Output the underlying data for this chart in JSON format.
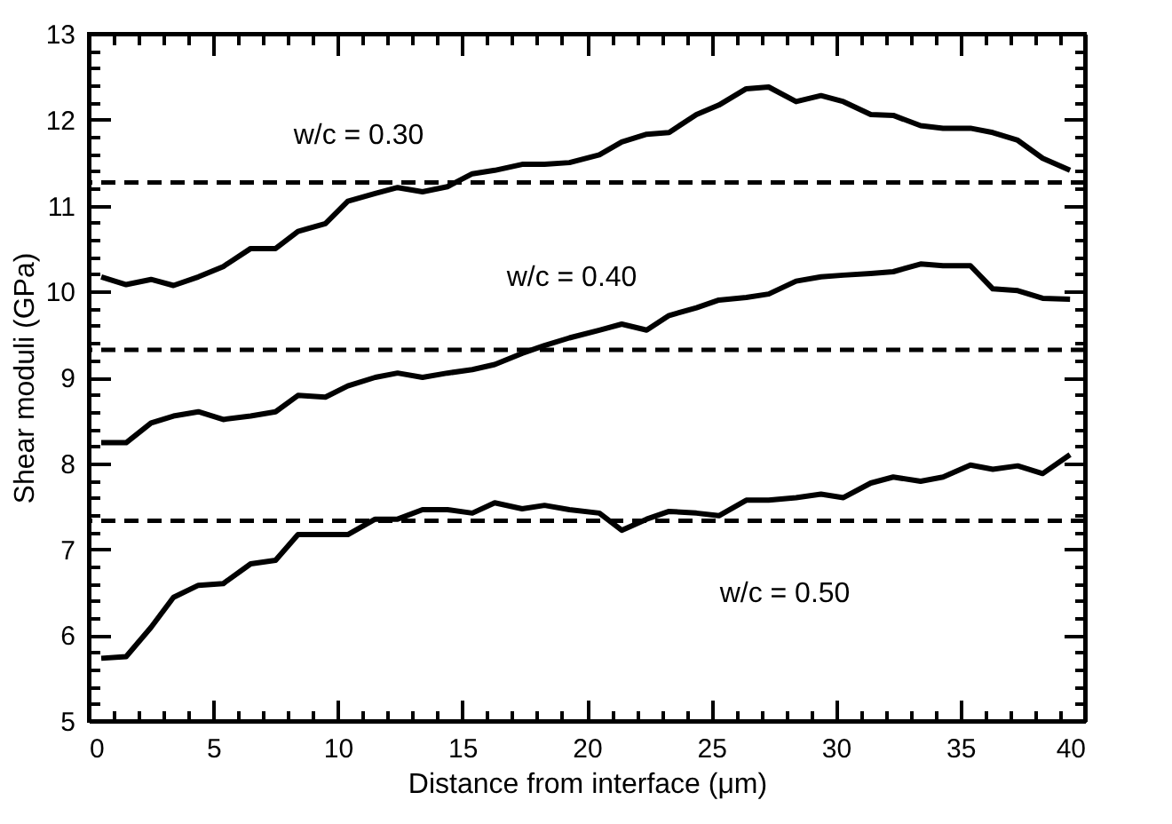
{
  "chart_data": {
    "type": "line",
    "xlabel": "Distance from interface (μm)",
    "ylabel": "Shear moduli (GPa)",
    "x": [
      0.5,
      1.5,
      2.5,
      3.4,
      4.4,
      5.4,
      6.5,
      7.5,
      8.4,
      9.5,
      10.4,
      11.5,
      12.4,
      13.4,
      14.4,
      15.4,
      16.3,
      17.4,
      18.3,
      19.3,
      20.5,
      21.4,
      22.4,
      23.3,
      24.4,
      25.3,
      26.4,
      27.3,
      28.4,
      29.4,
      30.3,
      31.4,
      32.3,
      33.4,
      34.3,
      35.4,
      36.3,
      37.3,
      38.3,
      39.4
    ],
    "series": [
      {
        "name": "w/c = 0.30",
        "color": "#000000",
        "values": [
          10.17,
          10.08,
          10.14,
          10.07,
          10.17,
          10.29,
          10.5,
          10.5,
          10.7,
          10.79,
          11.05,
          11.14,
          11.21,
          11.16,
          11.22,
          11.37,
          11.41,
          11.48,
          11.48,
          11.5,
          11.59,
          11.74,
          11.83,
          11.85,
          12.06,
          12.17,
          12.36,
          12.38,
          12.21,
          12.28,
          12.21,
          12.06,
          12.05,
          11.93,
          11.9,
          11.9,
          11.85,
          11.76,
          11.55,
          11.41
        ]
      },
      {
        "name": "w/c = 0.40",
        "color": "#000000",
        "values": [
          8.24,
          8.24,
          8.47,
          8.55,
          8.6,
          8.51,
          8.55,
          8.6,
          8.79,
          8.77,
          8.9,
          9.0,
          9.05,
          9.0,
          9.05,
          9.09,
          9.15,
          9.28,
          9.37,
          9.46,
          9.55,
          9.62,
          9.55,
          9.72,
          9.81,
          9.9,
          9.93,
          9.97,
          10.12,
          10.17,
          10.19,
          10.21,
          10.23,
          10.32,
          10.3,
          10.3,
          10.03,
          10.01,
          9.92,
          9.91
        ]
      },
      {
        "name": "w/c = 0.50",
        "color": "#000000",
        "values": [
          5.73,
          5.75,
          6.09,
          6.44,
          6.58,
          6.6,
          6.83,
          6.87,
          7.17,
          7.17,
          7.17,
          7.35,
          7.35,
          7.46,
          7.46,
          7.42,
          7.54,
          7.47,
          7.51,
          7.46,
          7.42,
          7.22,
          7.35,
          7.44,
          7.42,
          7.39,
          7.57,
          7.57,
          7.6,
          7.64,
          7.6,
          7.77,
          7.84,
          7.79,
          7.84,
          7.98,
          7.93,
          7.97,
          7.88,
          8.1
        ]
      }
    ],
    "ref_lines": [
      {
        "axis": "y",
        "value": 11.27,
        "color": "#000000",
        "line_style": "dashed"
      },
      {
        "axis": "y",
        "value": 9.32,
        "color": "#000000",
        "line_style": "dashed"
      },
      {
        "axis": "y",
        "value": 7.33,
        "color": "#000000",
        "line_style": "dashed"
      }
    ],
    "xlim": [
      0,
      40
    ],
    "xticks": [
      0,
      5,
      10,
      15,
      20,
      25,
      30,
      35,
      40
    ],
    "ylim": [
      5,
      13
    ],
    "yticks": [
      5,
      6,
      7,
      8,
      9,
      10,
      11,
      12,
      13
    ],
    "grid": false,
    "legend": false,
    "marker": "none",
    "line_style": "solid"
  }
}
